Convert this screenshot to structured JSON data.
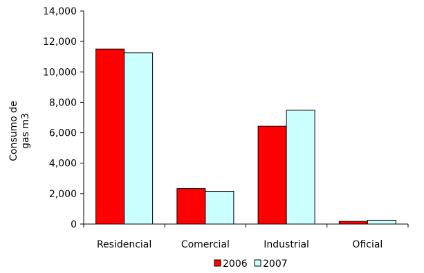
{
  "chart_data": {
    "type": "bar",
    "title": "",
    "xlabel": "",
    "ylabel_lines": [
      "Consumo de",
      "gas m3"
    ],
    "categories": [
      "Residencial",
      "Comercial",
      "Industrial",
      "Oficial"
    ],
    "series": [
      {
        "name": "2006",
        "color": "#ff0000",
        "values": [
          11500,
          2330,
          6430,
          180
        ]
      },
      {
        "name": "2007",
        "color": "#ccffff",
        "values": [
          11250,
          2150,
          7480,
          250
        ]
      }
    ],
    "ylim": [
      0,
      14000
    ],
    "yticks": [
      0,
      2000,
      4000,
      6000,
      8000,
      10000,
      12000,
      14000
    ],
    "ytick_labels": [
      "0",
      "2,000",
      "4,000",
      "6,000",
      "8,000",
      "10,000",
      "12,000",
      "14,000"
    ],
    "grid": false,
    "legend_position": "bottom"
  }
}
